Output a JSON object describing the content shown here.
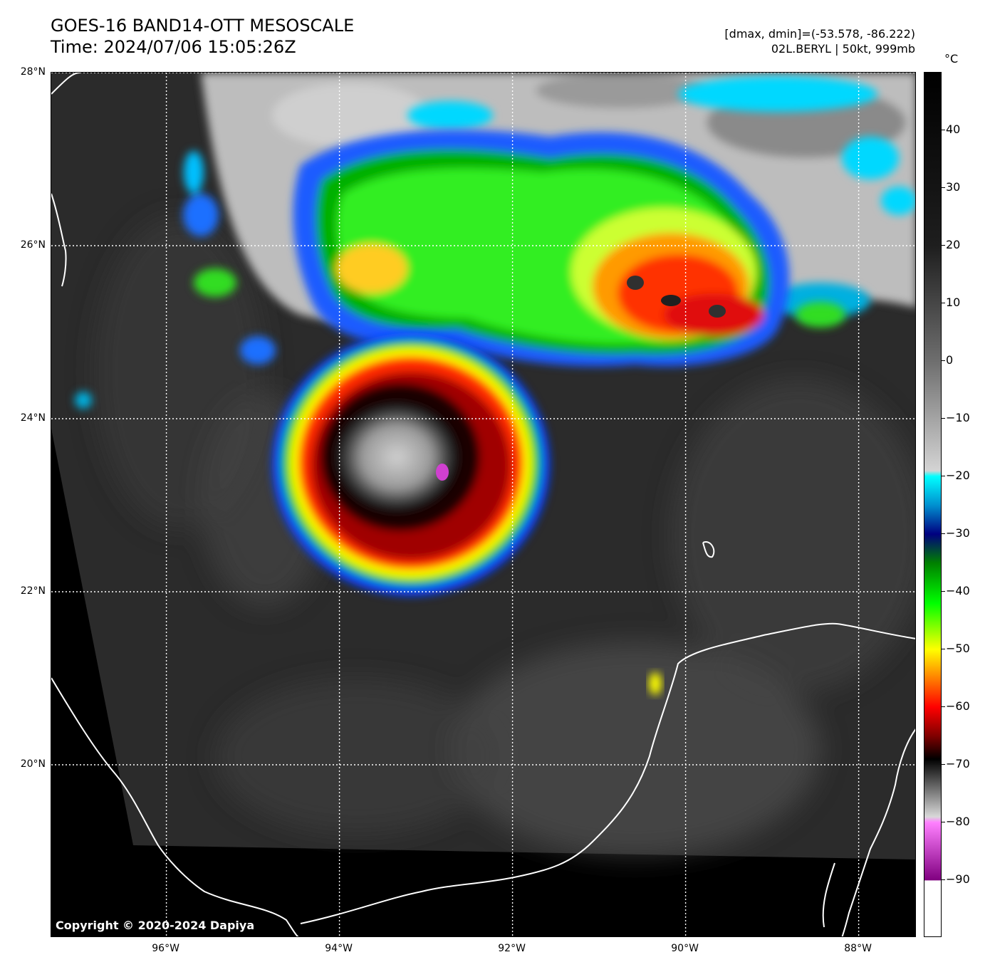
{
  "title": {
    "line1": "GOES-16 BAND14-OTT MESOSCALE",
    "line2": "Time: 2024/07/06 15:05:26Z"
  },
  "metadata": {
    "line1": "[dmax, dmin]=(-53.578, -86.222)",
    "line2": "02L.BERYL | 50kt, 999mb"
  },
  "copyright": "Copyright © 2020-2024 Dapiya",
  "map": {
    "lon_range": [
      -97.33,
      -87.33
    ],
    "lat_range": [
      18.0,
      28.0
    ],
    "lat_ticks": [
      {
        "value": 28,
        "label": "28°N"
      },
      {
        "value": 26,
        "label": "26°N"
      },
      {
        "value": 24,
        "label": "24°N"
      },
      {
        "value": 22,
        "label": "22°N"
      },
      {
        "value": 20,
        "label": "20°N"
      }
    ],
    "lon_ticks": [
      {
        "value": -96,
        "label": "96°W"
      },
      {
        "value": -94,
        "label": "94°W"
      },
      {
        "value": -92,
        "label": "92°W"
      },
      {
        "value": -90,
        "label": "90°W"
      },
      {
        "value": -88,
        "label": "88°W"
      }
    ],
    "gridlines": "dotted",
    "coastline_color": "#ffffff",
    "storm_center": {
      "lon": -92.9,
      "lat": 23.45
    }
  },
  "colorbar": {
    "unit": "°C",
    "range": [
      -100,
      50
    ],
    "ticks": [
      {
        "value": 40,
        "label": "40"
      },
      {
        "value": 30,
        "label": "30"
      },
      {
        "value": 20,
        "label": "20"
      },
      {
        "value": 10,
        "label": "10"
      },
      {
        "value": 0,
        "label": "0"
      },
      {
        "value": -10,
        "label": "−10"
      },
      {
        "value": -20,
        "label": "−20"
      },
      {
        "value": -30,
        "label": "−30"
      },
      {
        "value": -40,
        "label": "−40"
      },
      {
        "value": -50,
        "label": "−50"
      },
      {
        "value": -60,
        "label": "−60"
      },
      {
        "value": -70,
        "label": "−70"
      },
      {
        "value": -80,
        "label": "−80"
      },
      {
        "value": -90,
        "label": "−90"
      }
    ],
    "stops": [
      {
        "value": 50,
        "color": "#000000"
      },
      {
        "value": 20,
        "color": "#1e1e1e"
      },
      {
        "value": 0,
        "color": "#6e6e6e"
      },
      {
        "value": -19,
        "color": "#d4d4d4"
      },
      {
        "value": -20,
        "color": "#00ffff"
      },
      {
        "value": -25,
        "color": "#0090d0"
      },
      {
        "value": -30,
        "color": "#000080"
      },
      {
        "value": -35,
        "color": "#008000"
      },
      {
        "value": -42,
        "color": "#00ff00"
      },
      {
        "value": -50,
        "color": "#ffff00"
      },
      {
        "value": -55,
        "color": "#ff8000"
      },
      {
        "value": -60,
        "color": "#ff0000"
      },
      {
        "value": -65,
        "color": "#800000"
      },
      {
        "value": -69,
        "color": "#000000"
      },
      {
        "value": -79,
        "color": "#d8d8d8"
      },
      {
        "value": -80,
        "color": "#ff80ff"
      },
      {
        "value": -90,
        "color": "#800080"
      },
      {
        "value": -90.1,
        "color": "#ffffff"
      },
      {
        "value": -100,
        "color": "#ffffff"
      }
    ]
  }
}
